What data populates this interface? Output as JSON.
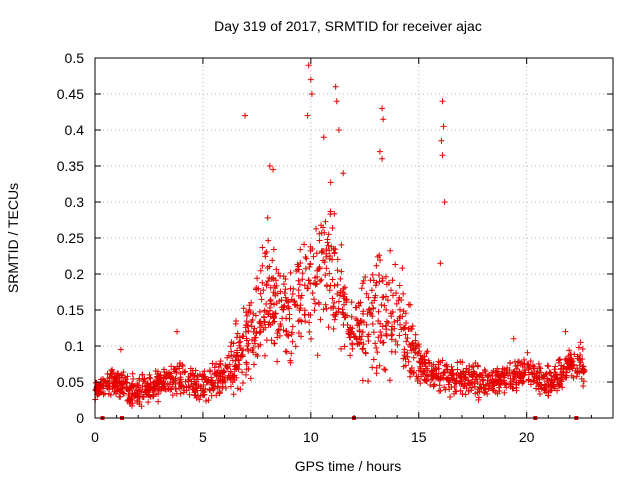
{
  "chart_data": {
    "type": "scatter",
    "title": "Day 319 of 2017, SRMTID for receiver ajac",
    "xlabel": "GPS time / hours",
    "ylabel": "SRMTID / TECUs",
    "xlim": [
      0,
      24
    ],
    "ylim": [
      0,
      0.5
    ],
    "xticks": [
      0,
      5,
      10,
      15,
      20
    ],
    "xtick_labels": [
      "0",
      "5",
      "10",
      "15",
      "20"
    ],
    "yticks": [
      0,
      0.05,
      0.1,
      0.15,
      0.2,
      0.25,
      0.3,
      0.35,
      0.4,
      0.45,
      0.5
    ],
    "ytick_labels": [
      "0",
      "0.05",
      "0.1",
      "0.15",
      "0.2",
      "0.25",
      "0.3",
      "0.35",
      "0.4",
      "0.45",
      "0.5"
    ],
    "grid": true,
    "marker": "plus",
    "color": "#e60000",
    "data_range_hours": [
      0.0,
      22.7
    ],
    "gap_markers_x": [
      0.35,
      1.25,
      12.0,
      20.4,
      22.3
    ],
    "series": [
      {
        "name": "SRMTID",
        "envelope": [
          {
            "x": 0.0,
            "base": 0.04,
            "spread": 0.01
          },
          {
            "x": 1.0,
            "base": 0.05,
            "spread": 0.02
          },
          {
            "x": 2.0,
            "base": 0.035,
            "spread": 0.02
          },
          {
            "x": 3.0,
            "base": 0.045,
            "spread": 0.02
          },
          {
            "x": 4.0,
            "base": 0.055,
            "spread": 0.02
          },
          {
            "x": 5.0,
            "base": 0.045,
            "spread": 0.02
          },
          {
            "x": 6.0,
            "base": 0.06,
            "spread": 0.02
          },
          {
            "x": 7.0,
            "base": 0.1,
            "spread": 0.05
          },
          {
            "x": 8.0,
            "base": 0.17,
            "spread": 0.08
          },
          {
            "x": 9.0,
            "base": 0.14,
            "spread": 0.05
          },
          {
            "x": 10.0,
            "base": 0.19,
            "spread": 0.09
          },
          {
            "x": 11.0,
            "base": 0.21,
            "spread": 0.08
          },
          {
            "x": 12.0,
            "base": 0.12,
            "spread": 0.04
          },
          {
            "x": 13.0,
            "base": 0.14,
            "spread": 0.08
          },
          {
            "x": 14.0,
            "base": 0.15,
            "spread": 0.07
          },
          {
            "x": 15.0,
            "base": 0.07,
            "spread": 0.03
          },
          {
            "x": 16.0,
            "base": 0.06,
            "spread": 0.02
          },
          {
            "x": 17.0,
            "base": 0.055,
            "spread": 0.02
          },
          {
            "x": 18.0,
            "base": 0.05,
            "spread": 0.02
          },
          {
            "x": 19.0,
            "base": 0.055,
            "spread": 0.02
          },
          {
            "x": 20.0,
            "base": 0.065,
            "spread": 0.02
          },
          {
            "x": 21.0,
            "base": 0.045,
            "spread": 0.02
          },
          {
            "x": 22.0,
            "base": 0.075,
            "spread": 0.02
          },
          {
            "x": 22.7,
            "base": 0.07,
            "spread": 0.02
          }
        ],
        "outliers": [
          {
            "x": 6.95,
            "y": 0.42
          },
          {
            "x": 8.1,
            "y": 0.35
          },
          {
            "x": 8.25,
            "y": 0.345
          },
          {
            "x": 9.9,
            "y": 0.49
          },
          {
            "x": 10.0,
            "y": 0.47
          },
          {
            "x": 9.85,
            "y": 0.42
          },
          {
            "x": 10.05,
            "y": 0.45
          },
          {
            "x": 11.15,
            "y": 0.46
          },
          {
            "x": 11.2,
            "y": 0.44
          },
          {
            "x": 11.3,
            "y": 0.4
          },
          {
            "x": 10.6,
            "y": 0.39
          },
          {
            "x": 11.5,
            "y": 0.34
          },
          {
            "x": 13.3,
            "y": 0.43
          },
          {
            "x": 13.35,
            "y": 0.415
          },
          {
            "x": 13.2,
            "y": 0.37
          },
          {
            "x": 13.3,
            "y": 0.36
          },
          {
            "x": 16.1,
            "y": 0.44
          },
          {
            "x": 16.15,
            "y": 0.405
          },
          {
            "x": 16.05,
            "y": 0.385
          },
          {
            "x": 16.1,
            "y": 0.365
          },
          {
            "x": 16.2,
            "y": 0.3
          },
          {
            "x": 16.0,
            "y": 0.215
          },
          {
            "x": 3.8,
            "y": 0.12
          },
          {
            "x": 1.2,
            "y": 0.095
          },
          {
            "x": 21.8,
            "y": 0.12
          },
          {
            "x": 22.5,
            "y": 0.105
          },
          {
            "x": 19.4,
            "y": 0.11
          }
        ]
      }
    ]
  }
}
